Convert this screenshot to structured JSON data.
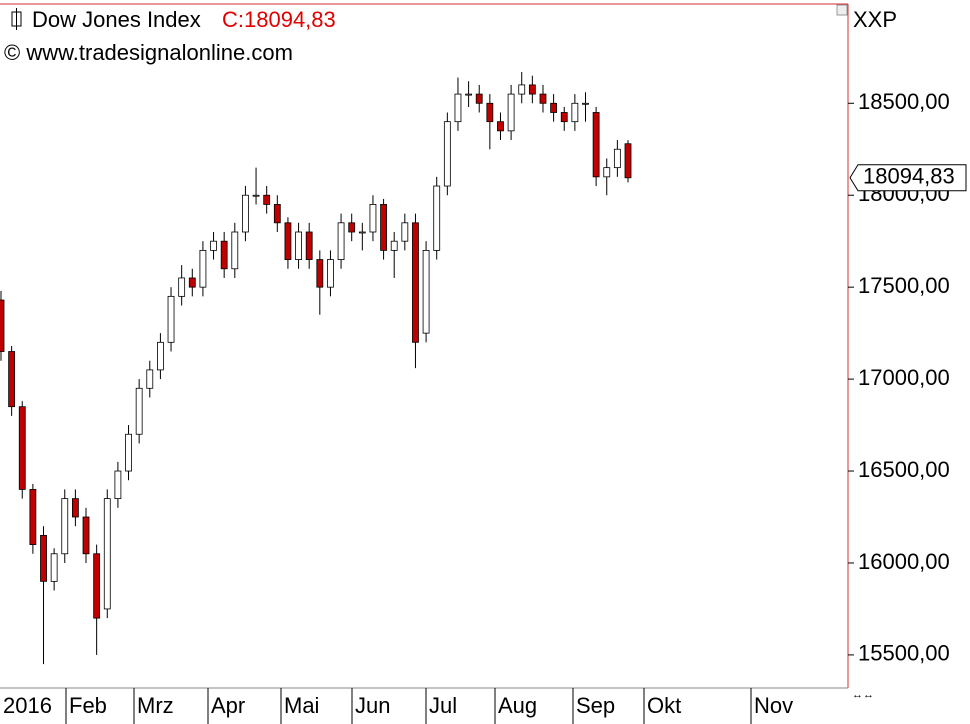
{
  "chart_data": {
    "type": "candlestick",
    "title": "Dow Jones Index",
    "close_label": "C:18094,83",
    "source": "© www.tradesignalonline.com",
    "exchange": "XXP",
    "last": {
      "value": 18094.83,
      "label": "18094,83"
    },
    "x_labels": [
      "2016",
      "Feb",
      "Mrz",
      "Apr",
      "Mai",
      "Jun",
      "Jul",
      "Aug",
      "Sep",
      "Okt",
      "Nov"
    ],
    "ylim": [
      15320,
      19040
    ],
    "yticks": [
      {
        "value": 15500,
        "label": "15500,00"
      },
      {
        "value": 16000,
        "label": "16000,00"
      },
      {
        "value": 16500,
        "label": "16500,00"
      },
      {
        "value": 17000,
        "label": "17000,00"
      },
      {
        "value": 17500,
        "label": "17500,00"
      },
      {
        "value": 18000,
        "label": "18000,00"
      },
      {
        "value": 18500,
        "label": "18500,00"
      }
    ],
    "up_color": "#ffffff",
    "down_color": "#c00000",
    "open": [
      17430,
      17150,
      16850,
      16400,
      16150,
      15900,
      16050,
      16350,
      16250,
      16050,
      15750,
      16350,
      16500,
      16700,
      16950,
      17050,
      17200,
      17450,
      17550,
      17500,
      17700,
      17750,
      17600,
      17800,
      18000,
      18000,
      17950,
      17850,
      17650,
      17800,
      17650,
      17500,
      17650,
      17850,
      17800,
      17800,
      17950,
      17700,
      17750,
      17850,
      17250,
      17700,
      18050,
      18400,
      18550,
      18550,
      18500,
      18400,
      18350,
      18550,
      18600,
      18550,
      18500,
      18450,
      18400,
      18500,
      18450,
      18100,
      18150,
      18280
    ],
    "high": [
      17480,
      17180,
      16880,
      16430,
      16200,
      16080,
      16400,
      16400,
      16300,
      16100,
      16400,
      16550,
      16750,
      17000,
      17100,
      17250,
      17500,
      17620,
      17600,
      17750,
      17800,
      17800,
      17850,
      18050,
      18150,
      18050,
      18000,
      17880,
      17850,
      17850,
      17700,
      17700,
      17900,
      17900,
      17850,
      18000,
      17980,
      17800,
      17900,
      17900,
      17750,
      18100,
      18450,
      18640,
      18620,
      18600,
      18550,
      18450,
      18600,
      18670,
      18650,
      18600,
      18550,
      18480,
      18550,
      18560,
      18480,
      18200,
      18300,
      18300
    ],
    "low": [
      17100,
      16800,
      16350,
      16050,
      15450,
      15850,
      16000,
      16200,
      16000,
      15500,
      15700,
      16300,
      16450,
      16650,
      16900,
      17000,
      17150,
      17400,
      17450,
      17450,
      17650,
      17550,
      17550,
      17750,
      17950,
      17900,
      17800,
      17600,
      17600,
      17600,
      17350,
      17450,
      17600,
      17750,
      17700,
      17750,
      17650,
      17550,
      17700,
      17060,
      17200,
      17650,
      18000,
      18350,
      18480,
      18450,
      18250,
      18300,
      18300,
      18500,
      18500,
      18450,
      18400,
      18350,
      18350,
      18400,
      18050,
      18000,
      18100,
      18070
    ],
    "close": [
      17150,
      16850,
      16400,
      16100,
      15900,
      16050,
      16350,
      16250,
      16050,
      15700,
      16350,
      16500,
      16700,
      16950,
      17050,
      17200,
      17450,
      17550,
      17500,
      17700,
      17750,
      17600,
      17800,
      18000,
      18000,
      17950,
      17850,
      17650,
      17800,
      17650,
      17500,
      17650,
      17850,
      17800,
      17800,
      17950,
      17700,
      17750,
      17850,
      17200,
      17700,
      18050,
      18400,
      18550,
      18550,
      18500,
      18400,
      18350,
      18550,
      18600,
      18550,
      18500,
      18450,
      18400,
      18500,
      18500,
      18100,
      18150,
      18250,
      18094.83
    ]
  }
}
